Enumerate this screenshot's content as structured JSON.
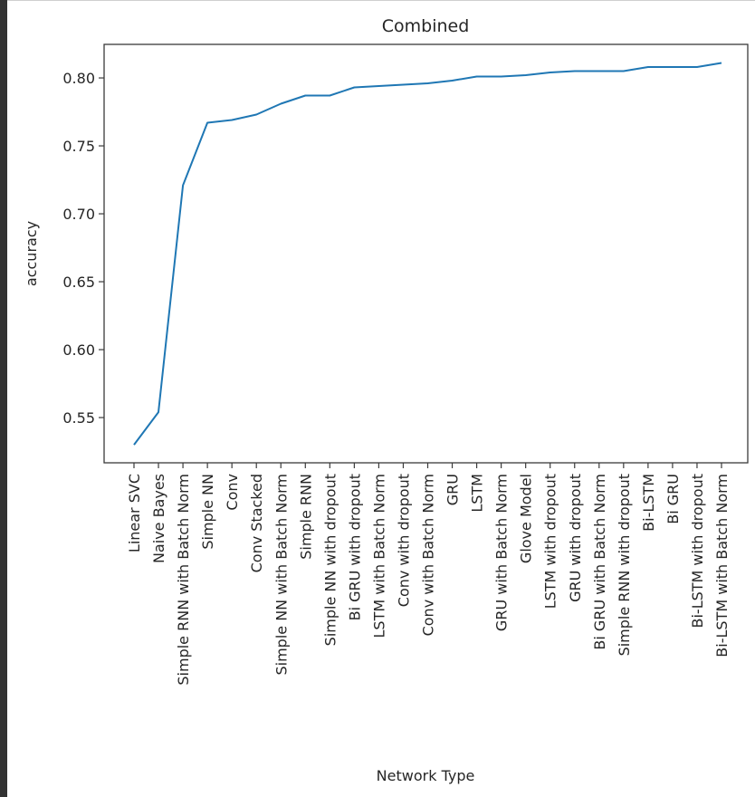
{
  "chart_data": {
    "type": "line",
    "title": "Combined",
    "xlabel": "Network Type",
    "ylabel": "accuracy",
    "categories": [
      "Linear SVC",
      "Naive Bayes",
      "Simple RNN with Batch Norm",
      "Simple NN",
      "Conv",
      "Conv Stacked",
      "Simple NN with Batch Norm",
      "Simple RNN",
      "Simple NN with dropout",
      "Bi GRU with dropout",
      "LSTM with Batch Norm",
      "Conv with dropout",
      "Conv with Batch Norm",
      "GRU",
      "LSTM",
      "GRU with Batch Norm",
      "Glove Model",
      "LSTM with dropout",
      "GRU with dropout",
      "Bi GRU with Batch Norm",
      "Simple RNN with dropout",
      "Bi-LSTM",
      "Bi GRU",
      "Bi-LSTM with dropout",
      "Bi-LSTM with Batch Norm"
    ],
    "series": [
      {
        "name": "accuracy",
        "color": "#1f77b4",
        "values": [
          0.53,
          0.554,
          0.721,
          0.767,
          0.769,
          0.773,
          0.781,
          0.787,
          0.787,
          0.793,
          0.794,
          0.795,
          0.796,
          0.798,
          0.801,
          0.801,
          0.802,
          0.804,
          0.805,
          0.805,
          0.805,
          0.808,
          0.808,
          0.808,
          0.811
        ]
      }
    ],
    "yticks": [
      "0.55",
      "0.60",
      "0.65",
      "0.70",
      "0.75",
      "0.80"
    ],
    "ylim": [
      0.5167,
      0.8247
    ],
    "grid": false,
    "legend": null
  }
}
